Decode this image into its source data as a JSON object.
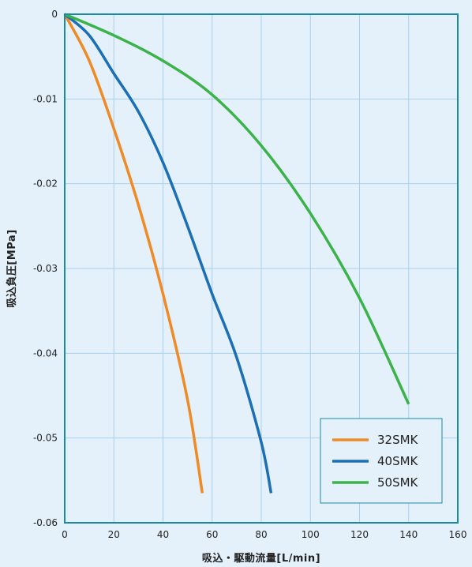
{
  "chart_data": {
    "type": "line",
    "xlabel": "吸込・駆動流量[L/min]",
    "ylabel": "吸込負圧[MPa]",
    "xlim": [
      0,
      160
    ],
    "ylim": [
      -0.06,
      0
    ],
    "x_ticks": [
      "0",
      "20",
      "40",
      "60",
      "80",
      "100",
      "120",
      "140",
      "160"
    ],
    "y_ticks": [
      "0",
      "-0.01",
      "-0.02",
      "-0.03",
      "-0.04",
      "-0.05",
      "-0.06"
    ],
    "grid": true,
    "legend_position": "bottom-right",
    "series": [
      {
        "name": "32SMK",
        "color": "#f08a24",
        "points": [
          [
            0,
            0
          ],
          [
            10,
            -0.0055
          ],
          [
            20,
            -0.0135
          ],
          [
            30,
            -0.0225
          ],
          [
            40,
            -0.033
          ],
          [
            50,
            -0.0455
          ],
          [
            56,
            -0.0565
          ]
        ]
      },
      {
        "name": "40SMK",
        "color": "#1a6fb5",
        "points": [
          [
            0,
            0
          ],
          [
            10,
            -0.0025
          ],
          [
            20,
            -0.007
          ],
          [
            30,
            -0.0115
          ],
          [
            40,
            -0.0175
          ],
          [
            50,
            -0.025
          ],
          [
            60,
            -0.033
          ],
          [
            70,
            -0.0405
          ],
          [
            80,
            -0.0505
          ],
          [
            84,
            -0.0565
          ]
        ]
      },
      {
        "name": "50SMK",
        "color": "#3cb34a",
        "points": [
          [
            0,
            0
          ],
          [
            20,
            -0.0025
          ],
          [
            40,
            -0.0055
          ],
          [
            60,
            -0.0095
          ],
          [
            80,
            -0.0155
          ],
          [
            100,
            -0.0235
          ],
          [
            120,
            -0.0335
          ],
          [
            140,
            -0.046
          ]
        ]
      }
    ]
  }
}
